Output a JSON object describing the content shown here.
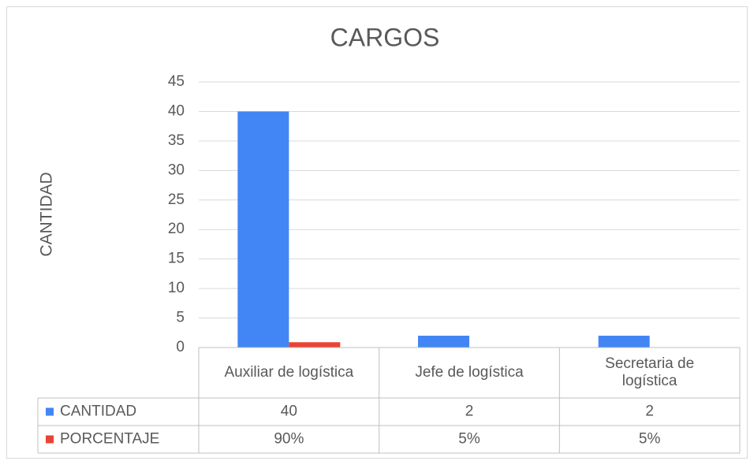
{
  "chart_data": {
    "type": "bar",
    "title": "CARGOS",
    "y_label": "CANTIDAD",
    "categories": [
      "Auxiliar de logística",
      "Jefe de logística",
      "Secretaria de logística"
    ],
    "series": [
      {
        "name": "CANTIDAD",
        "color": "#4285f4",
        "values": [
          40,
          2,
          2
        ]
      },
      {
        "name": "PORCENTAJE",
        "color": "#ea4335",
        "values": [
          0.9,
          0.05,
          0.05
        ],
        "value_labels": [
          "90%",
          "5%",
          "5%"
        ]
      }
    ],
    "ylim": [
      0,
      45
    ],
    "yticks": [
      0,
      5,
      10,
      15,
      20,
      25,
      30,
      35,
      40,
      45
    ],
    "grid": true,
    "data_table": true
  }
}
